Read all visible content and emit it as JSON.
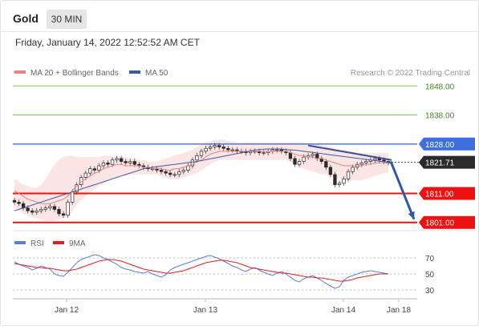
{
  "header": {
    "symbol": "Gold",
    "timeframe": "30 MIN"
  },
  "datetime": "Friday, January 14, 2022 12:52:52 AM CET",
  "credit": "Research © 2022 Trading Central",
  "chart_data": [
    {
      "type": "candlestick",
      "legend": [
        {
          "name": "MA 20 + Bollinger Bands",
          "color": "#f08080"
        },
        {
          "name": "MA 50",
          "color": "#3b5ba5"
        }
      ],
      "ylim": [
        1799,
        1850
      ],
      "levels": [
        {
          "value": 1848.0,
          "label": "1848.00",
          "kind": "target",
          "color": "#7cc35a"
        },
        {
          "value": 1838.0,
          "label": "1838.00",
          "kind": "target",
          "color": "#7cc35a"
        },
        {
          "value": 1828.0,
          "label": "1828.00",
          "kind": "pivot",
          "color": "#3e6fe0"
        },
        {
          "value": 1811.0,
          "label": "1811.00",
          "kind": "support",
          "color": "#ee1111"
        },
        {
          "value": 1801.0,
          "label": "1801.00",
          "kind": "support",
          "color": "#ee1111"
        }
      ],
      "last_price": {
        "value": 1821.71,
        "label": "1821.71"
      },
      "xticks": [
        "Jan 12",
        "Jan 13",
        "Jan 14",
        "Jan 18"
      ],
      "close": [
        1808,
        1807.5,
        1806,
        1805,
        1804.5,
        1805,
        1805.5,
        1806,
        1806.5,
        1805.5,
        1804,
        1803.5,
        1808,
        1811.5,
        1814,
        1816.5,
        1818,
        1819.5,
        1819,
        1820.5,
        1821.5,
        1821,
        1822.5,
        1823,
        1822,
        1821.5,
        1822,
        1821,
        1820.5,
        1820,
        1819.5,
        1819.5,
        1819,
        1818.5,
        1818,
        1817.5,
        1817.5,
        1818.5,
        1819,
        1820.5,
        1822.5,
        1824,
        1825.5,
        1826.5,
        1827,
        1827.5,
        1827,
        1826.5,
        1826,
        1826,
        1825.5,
        1825.5,
        1825,
        1825.5,
        1825.5,
        1825,
        1825,
        1825.5,
        1826,
        1826,
        1825.5,
        1825,
        1823,
        1821,
        1822,
        1823.5,
        1824,
        1824.5,
        1823,
        1822,
        1820,
        1817.5,
        1814,
        1814.5,
        1816,
        1818.5,
        1820,
        1821,
        1821.5,
        1822,
        1822.5,
        1823,
        1822.5,
        1822,
        1821.5
      ],
      "ma20": [
        1812,
        1811,
        1810,
        1809,
        1808.5,
        1808,
        1807.5,
        1807.5,
        1807.5,
        1808,
        1808.5,
        1809,
        1810,
        1812,
        1813.5,
        1815,
        1816,
        1817,
        1818,
        1818.5,
        1819.5,
        1820,
        1820.5,
        1821,
        1821,
        1820.5,
        1820.5,
        1820.5,
        1820.5,
        1820,
        1820,
        1819.5,
        1819.5,
        1819.5,
        1819,
        1819,
        1819.5,
        1819.5,
        1820,
        1820.5,
        1821,
        1822,
        1822.5,
        1823.5,
        1824.5,
        1825,
        1825.5,
        1825.5,
        1825.5,
        1825.5,
        1825.5,
        1825.5,
        1825.5,
        1825.5,
        1825.5,
        1825.5,
        1825.5,
        1825.5,
        1825.5,
        1825.5,
        1825.5,
        1825.5,
        1825,
        1824.5,
        1824,
        1824,
        1823.5,
        1823.5,
        1823,
        1823,
        1822.5,
        1822,
        1821.5,
        1821,
        1820.5,
        1820.5,
        1820.5,
        1820.5,
        1820.5,
        1821,
        1821,
        1821.5,
        1821.5,
        1821.5,
        1821.5
      ],
      "ma50": [
        1805,
        1805.5,
        1806,
        1806.5,
        1807,
        1807.5,
        1808,
        1808.5,
        1809,
        1809.5,
        1810,
        1810.5,
        1811,
        1811.5,
        1812,
        1812.5,
        1813,
        1813.5,
        1814,
        1814.5,
        1815,
        1815.5,
        1816,
        1816.5,
        1817,
        1817.5,
        1818,
        1818.5,
        1819,
        1819.5,
        1819.7,
        1820,
        1820.2,
        1820.4,
        1820.6,
        1820.8,
        1821,
        1821.2,
        1821.4,
        1821.6,
        1821.8,
        1822,
        1822.3,
        1822.6,
        1822.9,
        1823.2,
        1823.5,
        1823.8,
        1824.1,
        1824.4,
        1824.7,
        1825,
        1825.3,
        1825.6,
        1825.9,
        1826.1,
        1826.2,
        1826.3,
        1826.3,
        1826.3,
        1826.2,
        1826.1,
        1826,
        1825.9,
        1825.7,
        1825.5,
        1825.3,
        1825.1,
        1824.9,
        1824.7,
        1824.5,
        1824.3,
        1824.1,
        1823.9,
        1823.7,
        1823.5,
        1823.3,
        1823.1,
        1822.9,
        1822.7,
        1822.5,
        1822.3,
        1822.1,
        1821.9,
        1821.7
      ],
      "bb_upper": [
        1816,
        1815,
        1814,
        1813.5,
        1813,
        1813,
        1814,
        1816,
        1818.5,
        1821,
        1822.5,
        1823.5,
        1824,
        1824,
        1823.5,
        1823.5,
        1823.5,
        1823.5,
        1823.5,
        1823.5,
        1824,
        1824,
        1823.5,
        1823.5,
        1823.5,
        1823.5,
        1823,
        1823,
        1822.5,
        1822.5,
        1822,
        1822,
        1822,
        1822.5,
        1823,
        1823.5,
        1824,
        1824.5,
        1825,
        1825.5,
        1826,
        1827,
        1828,
        1828.5,
        1829,
        1829.5,
        1829.5,
        1829.5,
        1829,
        1829,
        1828.5,
        1828.5,
        1828.5,
        1828.5,
        1828.5,
        1828.5,
        1828.5,
        1828.5,
        1828.5,
        1828.5,
        1828.5,
        1828.5,
        1828.5,
        1828.5,
        1828.5,
        1828.5,
        1828,
        1828,
        1828,
        1827.5,
        1827.5,
        1827,
        1826.5,
        1826,
        1826,
        1826,
        1825.5,
        1825,
        1825,
        1825,
        1825,
        1825,
        1825,
        1825,
        1825
      ],
      "bb_lower": [
        1806,
        1805,
        1804,
        1803.5,
        1803,
        1802.5,
        1802,
        1801.5,
        1801.5,
        1801.5,
        1802,
        1802.5,
        1803,
        1805,
        1807,
        1808.5,
        1810,
        1811.5,
        1812.5,
        1813.5,
        1814.5,
        1815.5,
        1816,
        1816.5,
        1817,
        1817,
        1817.5,
        1817.5,
        1817.5,
        1817.5,
        1817.5,
        1817.5,
        1817.5,
        1817,
        1816.5,
        1816,
        1816,
        1816,
        1816.5,
        1817,
        1817.5,
        1818,
        1819,
        1820,
        1821,
        1822,
        1822.5,
        1822.5,
        1822.5,
        1822.5,
        1822.5,
        1822.5,
        1822.5,
        1822.5,
        1822.5,
        1822.5,
        1822.5,
        1822.5,
        1822.5,
        1822.5,
        1822.5,
        1822.5,
        1822,
        1821,
        1820,
        1819.5,
        1819,
        1818.5,
        1818,
        1817.5,
        1817.5,
        1817,
        1816.5,
        1816,
        1815.5,
        1815.5,
        1815.5,
        1815.5,
        1815.5,
        1816,
        1816.5,
        1817,
        1817.5,
        1818,
        1818
      ],
      "trendline": {
        "from": 1827.5,
        "to": 1822.5
      },
      "projection": {
        "from": 1822,
        "to": 1801
      }
    },
    {
      "type": "line",
      "legend": [
        {
          "name": "RSI",
          "color": "#5a7fd6"
        },
        {
          "name": "9MA",
          "color": "#e02020"
        }
      ],
      "ylim": [
        20,
        80
      ],
      "yticks": [
        70,
        50,
        30
      ],
      "series": [
        {
          "name": "RSI",
          "values": [
            65,
            62,
            60,
            58,
            55,
            57,
            60,
            58,
            56,
            50,
            48,
            47,
            52,
            58,
            64,
            68,
            70,
            72,
            74,
            73,
            70,
            68,
            65,
            62,
            58,
            56,
            55,
            53,
            52,
            51,
            53,
            50,
            48,
            46,
            49,
            55,
            58,
            60,
            62,
            64,
            66,
            68,
            70,
            72,
            73,
            71,
            69,
            66,
            63,
            60,
            58,
            55,
            53,
            56,
            58,
            55,
            52,
            50,
            48,
            51,
            53,
            50,
            46,
            42,
            40,
            44,
            46,
            48,
            45,
            42,
            38,
            35,
            32,
            34,
            42,
            46,
            48,
            50,
            52,
            53,
            54,
            53,
            52,
            51,
            50
          ]
        },
        {
          "name": "9MA",
          "values": [
            63,
            62,
            61,
            60,
            59,
            58,
            58,
            57,
            57,
            56,
            55,
            54,
            54,
            55,
            56,
            58,
            60,
            62,
            64,
            66,
            67,
            68,
            68,
            67,
            66,
            64,
            62,
            60,
            58,
            56,
            55,
            54,
            53,
            52,
            51,
            51,
            52,
            53,
            54,
            56,
            58,
            60,
            62,
            64,
            65,
            66,
            67,
            67,
            66,
            65,
            64,
            62,
            60,
            58,
            57,
            56,
            55,
            54,
            53,
            52,
            51,
            51,
            50,
            49,
            48,
            47,
            46,
            46,
            45,
            45,
            44,
            43,
            42,
            41,
            41,
            42,
            43,
            45,
            46,
            47,
            48,
            49,
            50,
            50,
            50
          ]
        }
      ]
    }
  ]
}
